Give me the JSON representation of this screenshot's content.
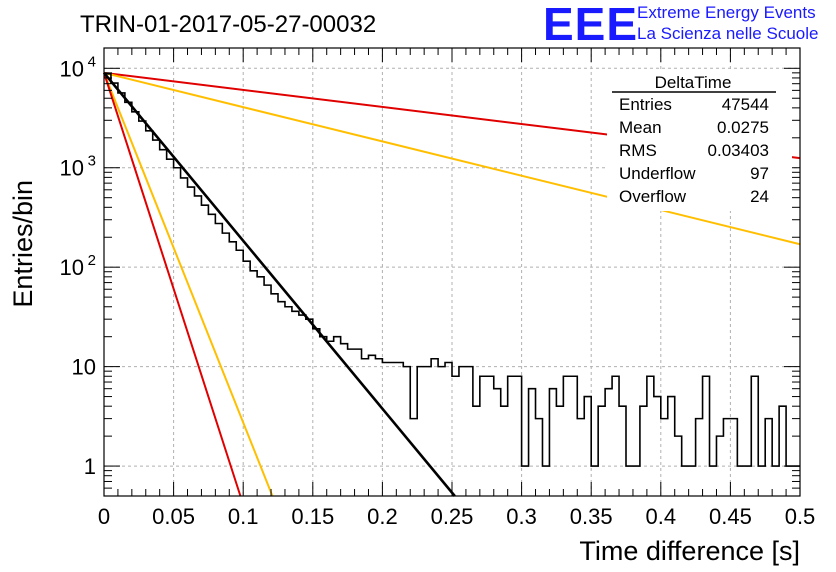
{
  "title": "TRIN-01-2017-05-27-00032",
  "logo": {
    "mark": "EEE",
    "line1": "Extreme Energy Events",
    "line2": "La Scienza nelle Scuole"
  },
  "stats": {
    "title": "DeltaTime",
    "rows": [
      {
        "label": "Entries",
        "value": "47544"
      },
      {
        "label": "Mean",
        "value": "0.0275"
      },
      {
        "label": "RMS",
        "value": "0.03403"
      },
      {
        "label": "Underflow",
        "value": "97"
      },
      {
        "label": "Overflow",
        "value": "24"
      }
    ]
  },
  "colors": {
    "histogram": "#000000",
    "fit": "#000000",
    "red": "#e00000",
    "orange": "#ffbf00",
    "logo": "#1a1aff"
  },
  "chart_data": {
    "type": "histogram",
    "xlabel": "Time difference [s]",
    "ylabel": "Entries/bin",
    "xlim": [
      0,
      0.5
    ],
    "ylim": [
      0.5,
      16000
    ],
    "yscale": "log",
    "grid": true,
    "x_ticks": [
      0,
      0.05,
      0.1,
      0.15,
      0.2,
      0.25,
      0.3,
      0.35,
      0.4,
      0.45,
      0.5
    ],
    "x_tick_labels": [
      "0",
      "0.05",
      "0.1",
      "0.15",
      "0.2",
      "0.25",
      "0.3",
      "0.35",
      "0.4",
      "0.45",
      "0.5"
    ],
    "y_ticks": [
      1,
      10,
      100,
      1000,
      10000
    ],
    "y_tick_labels": [
      "1",
      "10",
      "10^2",
      "10^3",
      "10^4"
    ],
    "bin_width": 0.005,
    "histogram_counts": [
      8800,
      7100,
      5650,
      4550,
      3650,
      2950,
      2350,
      1900,
      1520,
      1220,
      1000,
      790,
      640,
      520,
      420,
      340,
      275,
      220,
      180,
      148,
      115,
      92,
      80,
      66,
      54,
      45,
      40,
      36,
      33,
      30,
      24,
      20,
      18,
      20,
      17,
      15,
      15,
      12,
      13,
      12,
      11,
      11,
      11,
      10,
      3,
      10,
      10,
      12,
      10,
      11,
      8,
      10,
      10,
      4,
      8,
      8,
      6,
      4,
      8,
      8,
      1,
      6,
      3,
      1,
      6,
      4,
      8,
      8,
      3,
      5,
      1,
      4,
      6,
      8,
      4,
      1,
      1,
      4,
      8,
      5,
      3,
      5,
      2,
      1,
      1,
      3,
      8,
      1,
      2,
      3,
      3,
      1,
      1,
      8,
      1,
      3,
      1,
      4,
      1,
      1
    ],
    "curves": [
      {
        "color": "red",
        "x": [
          0,
          0.5
        ],
        "y": [
          9000,
          1250
        ]
      },
      {
        "color": "orange",
        "x": [
          0,
          0.5
        ],
        "y": [
          9000,
          170
        ]
      },
      {
        "color": "orange",
        "x": [
          0,
          0.121
        ],
        "y": [
          9000,
          0.5
        ]
      },
      {
        "color": "red",
        "x": [
          0,
          0.098
        ],
        "y": [
          9000,
          0.5
        ]
      },
      {
        "color": "fit",
        "x": [
          0,
          0.252
        ],
        "y": [
          9000,
          0.5
        ]
      }
    ]
  }
}
